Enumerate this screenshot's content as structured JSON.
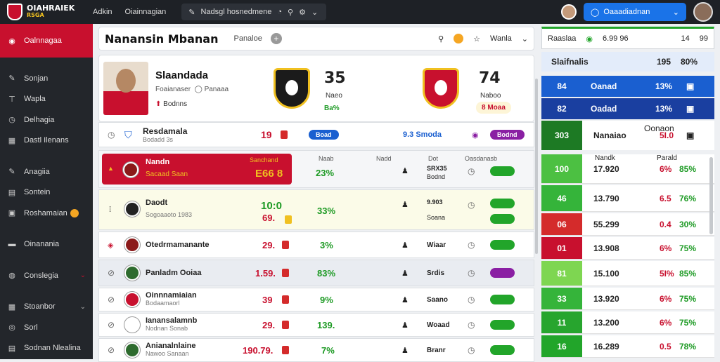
{
  "topbar": {
    "logo_line1": "OIAHRAIEK",
    "logo_line2": "RSGA",
    "link1": "Adkin",
    "link2": "Oiainnagian",
    "search_text": "Nadsgl hosnedmene",
    "select_label": "Oaaadiadnan"
  },
  "sidebar": {
    "active": "Oalnnagaa",
    "items": [
      "Sonjan",
      "Wapla",
      "Delhagia",
      "Dastl Ilenans",
      "Anagiia",
      "Sontein",
      "Roshamaian",
      "Oinanania",
      "Conslegia",
      "Stoanbor",
      "Sorl",
      "Sodnan Nlealina"
    ]
  },
  "header": {
    "title": "Nanansin Mbanan",
    "label": "Panaloe",
    "right_label": "Wanla"
  },
  "profile": {
    "name": "Slaandada",
    "sub": "Foaianaser",
    "sub_extra": "Panaaa",
    "meta": "Bodnns",
    "score1": "35",
    "score1_sub": "Naeo",
    "score1_pct": "Ba%",
    "score2": "74",
    "score2_sub": "Naboo",
    "score2_pill": "8 Moaa"
  },
  "rows": [
    {
      "name": "Resdamala",
      "sub": "Bodadd 3s",
      "val": "19",
      "pill": "Boad",
      "mid": "9.3 Smoda",
      "pill2": "Bodnd"
    },
    {
      "name": "Nandn",
      "sub": "Sacaad Saan",
      "val": "Sanchand",
      "val2": "E66 8",
      "pct": "23%",
      "c1": "Naab",
      "c2": "Nadd",
      "side": "SRX35",
      "side2": "Bodnd",
      "col_head": "Dot",
      "col_head2": "Oasdanasb"
    },
    {
      "name": "Daodt",
      "sub": "Sogoaaoto 1983",
      "val": "10:0",
      "val2": "69.",
      "pct": "33%",
      "side": "9.903",
      "side2": "Soana"
    },
    {
      "name": "Otedrmamanante",
      "val": "29.",
      "pct": "3%",
      "side": "Wiaar"
    },
    {
      "name": "Panladm Ooiaa",
      "val": "1.59.",
      "pct": "83%",
      "side": "Srdis"
    },
    {
      "name": "Oinnnamiaian",
      "sub": "Bodaamaorl",
      "val": "39",
      "pct": "9%",
      "side": "Saano"
    },
    {
      "name": "Ianansalamnb",
      "sub": "Nodnan Sonab",
      "val": "29.",
      "pct": "139.",
      "side": "Woaad"
    },
    {
      "name": "Anianalnlaine",
      "sub": "Nawoo Sanaan",
      "val": "190.79.",
      "pct": "7%",
      "side": "Branr"
    }
  ],
  "right_panel": {
    "header": [
      "Raaslaa",
      "6.99 96",
      "14",
      "99"
    ],
    "top_row": [
      "Slaifnalis",
      "195",
      "80%"
    ],
    "rows": [
      {
        "a": "84",
        "b": "Oanad",
        "c": "13%",
        "color": "#1a5fd0"
      },
      {
        "a": "82",
        "b": "Oadad",
        "c": "13%",
        "color": "#1a3fa0"
      },
      {
        "a": "303",
        "b": "Nanaiao",
        "c": "5I.0",
        "b2": "Oonaon",
        "color": "#1d7a24"
      },
      {
        "a": "100",
        "b": "17.920",
        "c": "6%",
        "d": "85%",
        "color": "#4cc042"
      },
      {
        "a": "46",
        "b": "13.790",
        "c": "6.5",
        "d": "76%",
        "color": "#35b43a"
      },
      {
        "a": "06",
        "b": "55.299",
        "c": "0.4",
        "d": "30%",
        "color": "#d42b2b"
      },
      {
        "a": "01",
        "b": "13.908",
        "c": "6%",
        "d": "75%",
        "color": "#c8102e"
      },
      {
        "a": "81",
        "b": "15.100",
        "c": "5I%",
        "d": "85%",
        "color": "#7ed651"
      },
      {
        "a": "33",
        "b": "13.920",
        "c": "6%",
        "d": "75%",
        "color": "#35b43a"
      },
      {
        "a": "11",
        "b": "13.200",
        "c": "6%",
        "d": "75%",
        "color": "#27a52e"
      },
      {
        "a": "16",
        "b": "16.289",
        "c": "0.5",
        "d": "78%",
        "color": "#22a52a"
      }
    ],
    "head_cols": [
      "Nandk",
      "Parald"
    ]
  }
}
